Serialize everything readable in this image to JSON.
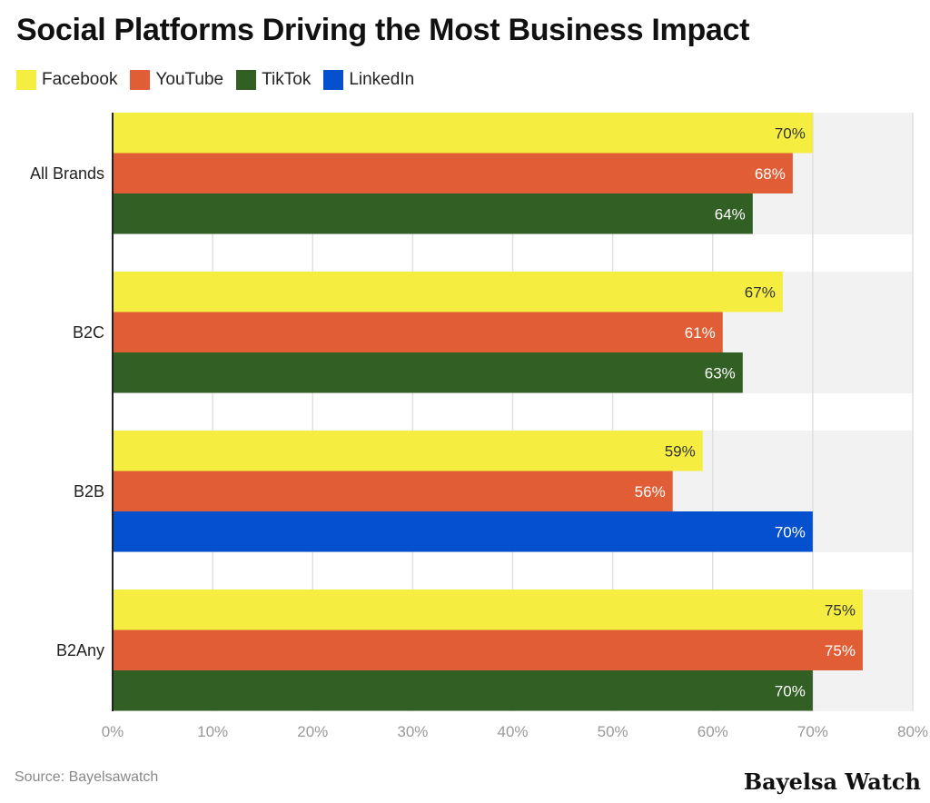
{
  "chart_data": {
    "type": "bar",
    "orientation": "horizontal",
    "title": "Social Platforms Driving the Most Business Impact",
    "categories": [
      "All Brands",
      "B2C",
      "B2B",
      "B2Any"
    ],
    "groups": [
      {
        "category": "All Brands",
        "bars": [
          {
            "series": "Facebook",
            "value": 70,
            "label": "70%"
          },
          {
            "series": "YouTube",
            "value": 68,
            "label": "68%"
          },
          {
            "series": "TikTok",
            "value": 64,
            "label": "64%"
          }
        ]
      },
      {
        "category": "B2C",
        "bars": [
          {
            "series": "Facebook",
            "value": 67,
            "label": "67%"
          },
          {
            "series": "YouTube",
            "value": 61,
            "label": "61%"
          },
          {
            "series": "TikTok",
            "value": 63,
            "label": "63%"
          }
        ]
      },
      {
        "category": "B2B",
        "bars": [
          {
            "series": "Facebook",
            "value": 59,
            "label": "59%"
          },
          {
            "series": "YouTube",
            "value": 56,
            "label": "56%"
          },
          {
            "series": "LinkedIn",
            "value": 70,
            "label": "70%"
          }
        ]
      },
      {
        "category": "B2Any",
        "bars": [
          {
            "series": "Facebook",
            "value": 75,
            "label": "75%"
          },
          {
            "series": "YouTube",
            "value": 75,
            "label": "75%"
          },
          {
            "series": "TikTok",
            "value": 70,
            "label": "70%"
          }
        ]
      }
    ],
    "legend": [
      {
        "name": "Facebook",
        "color": "#f5ee40"
      },
      {
        "name": "YouTube",
        "color": "#e05d35"
      },
      {
        "name": "TikTok",
        "color": "#315f24"
      },
      {
        "name": "LinkedIn",
        "color": "#0550cf"
      }
    ],
    "label_colors": {
      "Facebook": "#333333",
      "YouTube": "#ffffff",
      "TikTok": "#ffffff",
      "LinkedIn": "#ffffff"
    },
    "xlim": [
      0,
      80
    ],
    "xticks": [
      {
        "value": 0,
        "label": "0%"
      },
      {
        "value": 10,
        "label": "10%"
      },
      {
        "value": 20,
        "label": "20%"
      },
      {
        "value": 30,
        "label": "30%"
      },
      {
        "value": 40,
        "label": "40%"
      },
      {
        "value": 50,
        "label": "50%"
      },
      {
        "value": 60,
        "label": "60%"
      },
      {
        "value": 70,
        "label": "70%"
      },
      {
        "value": 80,
        "label": "80%"
      }
    ],
    "grid": true,
    "legend_position": "top-left",
    "xlabel": "",
    "ylabel": ""
  },
  "footer": {
    "source": "Source: Bayelsawatch",
    "brand": "Bayelsa Watch"
  }
}
